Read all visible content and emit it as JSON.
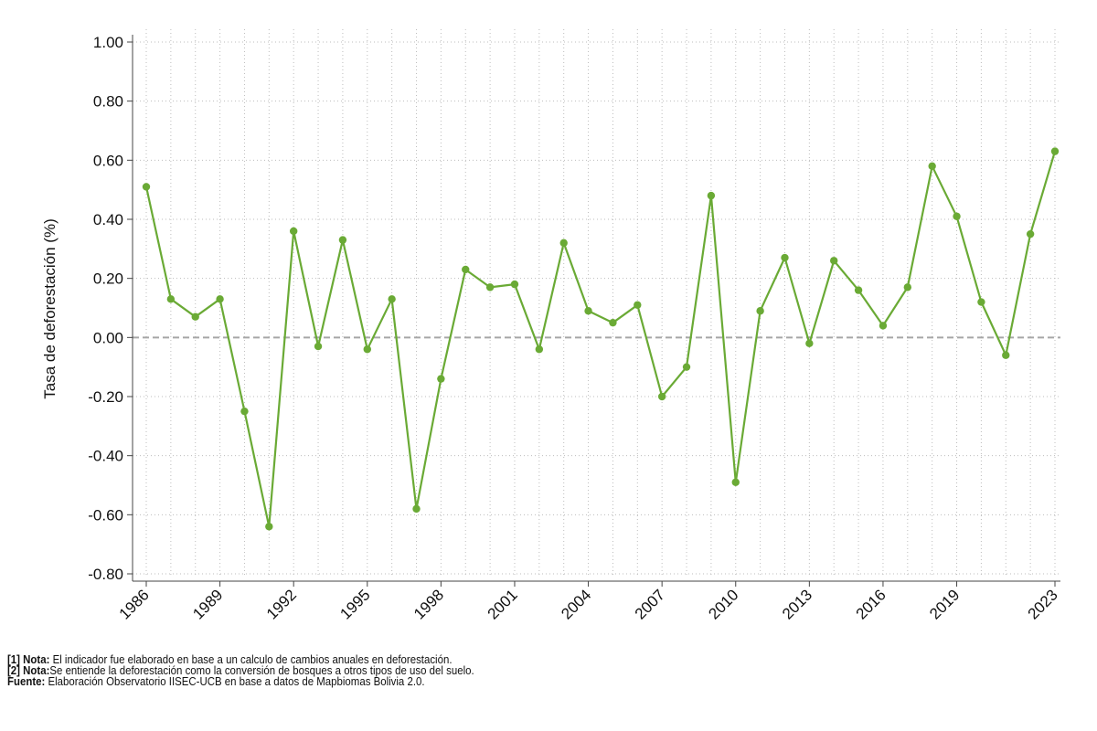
{
  "chart_data": {
    "type": "line",
    "ylabel": "Tasa de deforestación (%)",
    "xlabel": "",
    "ylim": [
      -0.8,
      1.0
    ],
    "yticks": [
      "-0.80",
      "-0.60",
      "-0.40",
      "-0.20",
      "0.00",
      "0.20",
      "0.40",
      "0.60",
      "0.80",
      "1.00"
    ],
    "xticks": [
      "1986",
      "1989",
      "1992",
      "1995",
      "1998",
      "2001",
      "2004",
      "2007",
      "2010",
      "2013",
      "2016",
      "2019",
      "2023"
    ],
    "grid": true,
    "zero_line": "dashed",
    "line_color": "#6aaa35",
    "zero_line_color": "#a6a6a6",
    "x": [
      1986,
      1987,
      1988,
      1989,
      1990,
      1991,
      1992,
      1993,
      1994,
      1995,
      1996,
      1997,
      1998,
      1999,
      2000,
      2001,
      2002,
      2003,
      2004,
      2005,
      2006,
      2007,
      2008,
      2009,
      2010,
      2011,
      2012,
      2013,
      2014,
      2015,
      2016,
      2017,
      2018,
      2019,
      2020,
      2021,
      2022,
      2023
    ],
    "values": [
      0.51,
      0.13,
      0.07,
      0.13,
      -0.25,
      -0.64,
      0.36,
      -0.03,
      0.33,
      -0.04,
      0.13,
      -0.58,
      -0.14,
      0.23,
      0.17,
      0.18,
      -0.04,
      0.32,
      0.09,
      0.05,
      0.11,
      -0.2,
      -0.1,
      0.48,
      -0.49,
      0.09,
      0.27,
      -0.02,
      0.26,
      0.16,
      0.04,
      0.17,
      0.58,
      0.41,
      0.12,
      -0.06,
      0.35,
      0.63
    ]
  },
  "notes": [
    {
      "label": "[1] Nota:",
      "text": " El indicador fue elaborado en base a un calculo de cambios anuales en deforestación."
    },
    {
      "label": "[2] Nota:",
      "text": "Se entiende la deforestación como la conversión de bosques a otros tipos de uso del suelo."
    },
    {
      "label": "Fuente:",
      "text": " Elaboración Observatorio IISEC-UCB en base a datos de Mapbiomas Bolivia 2.0."
    }
  ]
}
